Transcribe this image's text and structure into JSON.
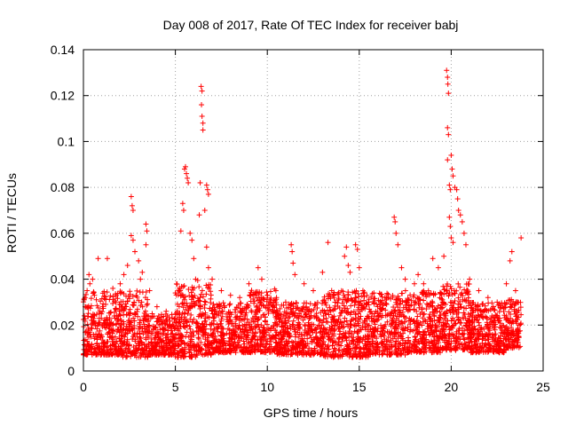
{
  "chart_data": {
    "type": "scatter",
    "title": "Day 008 of 2017, Rate Of TEC Index for receiver babj",
    "xlabel": "GPS time / hours",
    "ylabel": "ROTI / TECUs",
    "xlim": [
      0,
      25
    ],
    "ylim": [
      0,
      0.14
    ],
    "xticks": [
      0,
      5,
      10,
      15,
      20,
      25
    ],
    "yticks": [
      0,
      0.02,
      0.04,
      0.06,
      0.08,
      0.1,
      0.12,
      0.14
    ],
    "xtick_labels": [
      "0",
      "5",
      "10",
      "15",
      "20",
      "25"
    ],
    "ytick_labels": [
      "0",
      "0.02",
      "0.04",
      "0.06",
      "0.08",
      "0.1",
      "0.12",
      "0.14"
    ],
    "grid": true,
    "marker": "+",
    "color": "#ff0000",
    "series": [
      {
        "name": "ROTI",
        "points": [
          [
            0.1,
            0.028
          ],
          [
            0.2,
            0.035
          ],
          [
            0.3,
            0.042
          ],
          [
            0.35,
            0.038
          ],
          [
            0.5,
            0.04
          ],
          [
            0.6,
            0.033
          ],
          [
            0.8,
            0.049
          ],
          [
            1.3,
            0.049
          ],
          [
            1.6,
            0.036
          ],
          [
            2.0,
            0.038
          ],
          [
            2.2,
            0.042
          ],
          [
            2.4,
            0.046
          ],
          [
            2.6,
            0.076
          ],
          [
            2.65,
            0.072
          ],
          [
            2.7,
            0.07
          ],
          [
            2.6,
            0.059
          ],
          [
            2.7,
            0.057
          ],
          [
            2.8,
            0.052
          ],
          [
            3.0,
            0.048
          ],
          [
            3.1,
            0.04
          ],
          [
            3.2,
            0.043
          ],
          [
            3.4,
            0.064
          ],
          [
            3.45,
            0.061
          ],
          [
            3.4,
            0.055
          ],
          [
            3.6,
            0.035
          ],
          [
            4.0,
            0.028
          ],
          [
            4.5,
            0.026
          ],
          [
            5.0,
            0.034
          ],
          [
            5.3,
            0.061
          ],
          [
            5.4,
            0.073
          ],
          [
            5.45,
            0.07
          ],
          [
            5.5,
            0.088
          ],
          [
            5.55,
            0.089
          ],
          [
            5.6,
            0.086
          ],
          [
            5.65,
            0.084
          ],
          [
            5.7,
            0.082
          ],
          [
            5.8,
            0.06
          ],
          [
            5.9,
            0.057
          ],
          [
            6.0,
            0.049
          ],
          [
            6.1,
            0.04
          ],
          [
            6.3,
            0.068
          ],
          [
            6.35,
            0.082
          ],
          [
            6.4,
            0.124
          ],
          [
            6.45,
            0.122
          ],
          [
            6.42,
            0.116
          ],
          [
            6.45,
            0.111
          ],
          [
            6.5,
            0.108
          ],
          [
            6.5,
            0.105
          ],
          [
            6.6,
            0.07
          ],
          [
            6.7,
            0.081
          ],
          [
            6.75,
            0.079
          ],
          [
            6.8,
            0.077
          ],
          [
            6.7,
            0.054
          ],
          [
            6.8,
            0.045
          ],
          [
            7.0,
            0.04
          ],
          [
            7.5,
            0.035
          ],
          [
            8.0,
            0.033
          ],
          [
            8.5,
            0.032
          ],
          [
            9.0,
            0.038
          ],
          [
            9.5,
            0.045
          ],
          [
            9.7,
            0.04
          ],
          [
            10.0,
            0.033
          ],
          [
            10.5,
            0.032
          ],
          [
            11.0,
            0.03
          ],
          [
            11.3,
            0.055
          ],
          [
            11.35,
            0.052
          ],
          [
            11.4,
            0.047
          ],
          [
            11.5,
            0.042
          ],
          [
            12.0,
            0.038
          ],
          [
            12.5,
            0.035
          ],
          [
            13.0,
            0.043
          ],
          [
            13.3,
            0.056
          ],
          [
            13.5,
            0.035
          ],
          [
            14.2,
            0.05
          ],
          [
            14.3,
            0.054
          ],
          [
            14.4,
            0.046
          ],
          [
            14.5,
            0.043
          ],
          [
            14.8,
            0.055
          ],
          [
            14.9,
            0.053
          ],
          [
            15.0,
            0.045
          ],
          [
            15.2,
            0.035
          ],
          [
            15.5,
            0.03
          ],
          [
            16.0,
            0.028
          ],
          [
            16.5,
            0.032
          ],
          [
            16.9,
            0.067
          ],
          [
            16.95,
            0.065
          ],
          [
            17.0,
            0.06
          ],
          [
            17.1,
            0.055
          ],
          [
            17.3,
            0.045
          ],
          [
            17.5,
            0.04
          ],
          [
            18.0,
            0.038
          ],
          [
            18.2,
            0.042
          ],
          [
            18.5,
            0.038
          ],
          [
            19.0,
            0.049
          ],
          [
            19.3,
            0.045
          ],
          [
            19.6,
            0.05
          ],
          [
            19.75,
            0.131
          ],
          [
            19.8,
            0.128
          ],
          [
            19.82,
            0.125
          ],
          [
            19.85,
            0.121
          ],
          [
            19.8,
            0.106
          ],
          [
            19.85,
            0.103
          ],
          [
            19.8,
            0.092
          ],
          [
            19.9,
            0.081
          ],
          [
            19.95,
            0.079
          ],
          [
            20.0,
            0.094
          ],
          [
            20.05,
            0.088
          ],
          [
            20.1,
            0.085
          ],
          [
            20.2,
            0.08
          ],
          [
            19.9,
            0.067
          ],
          [
            19.95,
            0.063
          ],
          [
            20.0,
            0.058
          ],
          [
            20.1,
            0.056
          ],
          [
            20.3,
            0.079
          ],
          [
            20.35,
            0.075
          ],
          [
            20.4,
            0.07
          ],
          [
            20.5,
            0.068
          ],
          [
            20.6,
            0.065
          ],
          [
            20.7,
            0.06
          ],
          [
            20.8,
            0.055
          ],
          [
            21.0,
            0.04
          ],
          [
            21.5,
            0.035
          ],
          [
            22.0,
            0.032
          ],
          [
            22.5,
            0.03
          ],
          [
            23.0,
            0.038
          ],
          [
            23.2,
            0.048
          ],
          [
            23.3,
            0.052
          ],
          [
            23.5,
            0.035
          ],
          [
            23.6,
            0.03
          ],
          [
            23.8,
            0.058
          ],
          [
            1.0,
            0.012
          ],
          [
            2.0,
            0.01
          ],
          [
            3.0,
            0.013
          ],
          [
            4.0,
            0.012
          ],
          [
            5.0,
            0.011
          ],
          [
            6.0,
            0.01
          ],
          [
            7.0,
            0.012
          ],
          [
            8.0,
            0.011
          ],
          [
            9.0,
            0.012
          ],
          [
            10.0,
            0.013
          ],
          [
            11.0,
            0.011
          ],
          [
            12.0,
            0.01
          ],
          [
            13.0,
            0.012
          ],
          [
            14.0,
            0.011
          ],
          [
            15.0,
            0.01
          ],
          [
            16.0,
            0.012
          ],
          [
            17.0,
            0.013
          ],
          [
            18.0,
            0.011
          ],
          [
            19.0,
            0.012
          ],
          [
            20.0,
            0.013
          ],
          [
            21.0,
            0.011
          ],
          [
            22.0,
            0.012
          ],
          [
            23.0,
            0.011
          ]
        ],
        "bands": [
          [
            0,
            2,
            0.007,
            0.035
          ],
          [
            2,
            3.5,
            0.006,
            0.035
          ],
          [
            3.5,
            5,
            0.007,
            0.025
          ],
          [
            5,
            6.2,
            0.006,
            0.038
          ],
          [
            6.2,
            7,
            0.007,
            0.04
          ],
          [
            7,
            9,
            0.008,
            0.03
          ],
          [
            9,
            10.5,
            0.008,
            0.036
          ],
          [
            10.5,
            13,
            0.007,
            0.03
          ],
          [
            13,
            15.5,
            0.006,
            0.035
          ],
          [
            15.5,
            17.5,
            0.007,
            0.034
          ],
          [
            17.5,
            19.5,
            0.008,
            0.035
          ],
          [
            19.5,
            21,
            0.009,
            0.038
          ],
          [
            21,
            23,
            0.008,
            0.03
          ],
          [
            23,
            23.8,
            0.01,
            0.032
          ]
        ]
      }
    ]
  }
}
